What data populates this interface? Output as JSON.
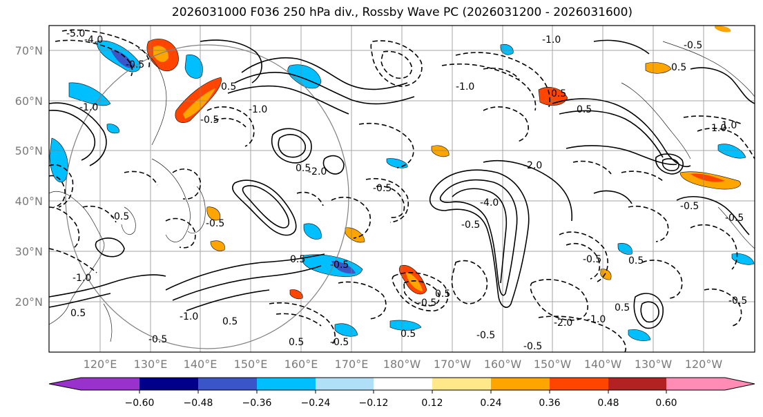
{
  "title": "2026031000 F036 250 hPa div., Rossby Wave PC (2026031200 - 2026031600)",
  "map": {
    "lon_labels": [
      "120°E",
      "130°E",
      "140°E",
      "150°E",
      "160°E",
      "170°E",
      "180°W",
      "170°W",
      "160°W",
      "150°W",
      "140°W",
      "130°W",
      "120°W"
    ],
    "lat_labels": [
      "70°N",
      "60°N",
      "50°N",
      "40°N",
      "30°N",
      "20°N"
    ],
    "contour_labels": [
      "-5.0",
      "-4.0",
      "-0.5",
      "-1.0",
      "0.5",
      "-0.5",
      "0.5",
      "-0.5",
      "-1.0",
      "-1.0",
      "-2.0",
      "-0.5",
      "-0.5",
      "0.5",
      "-0.5",
      "-4.0",
      "-0.5",
      "-0.5",
      "0.5",
      "0.5",
      "-0.5",
      "-0.5",
      "-2.0",
      "-1.0",
      "0.5",
      "-0.5",
      "0.5",
      "1.0",
      "0.5",
      "-1.0",
      "-1.0",
      "0.5",
      "-0.5",
      "-2.0",
      "-0.5",
      "0.5",
      "-0.5",
      "-1.0",
      "0.5",
      "0.5",
      "0.5",
      "-0.5",
      "-0.5",
      "-0.5",
      "1.0"
    ]
  },
  "colorbar": {
    "ticks": [
      "−0.60",
      "−0.48",
      "−0.36",
      "−0.24",
      "−0.12",
      "0.12",
      "0.24",
      "0.36",
      "0.48",
      "0.60"
    ],
    "colors": [
      "#9932cc",
      "#00008b",
      "#3a55c8",
      "#00bfff",
      "#b0e0f8",
      "#ffffff",
      "#ffe88a",
      "#ffa500",
      "#ff4500",
      "#b22222",
      "#ff8cb4"
    ]
  }
}
